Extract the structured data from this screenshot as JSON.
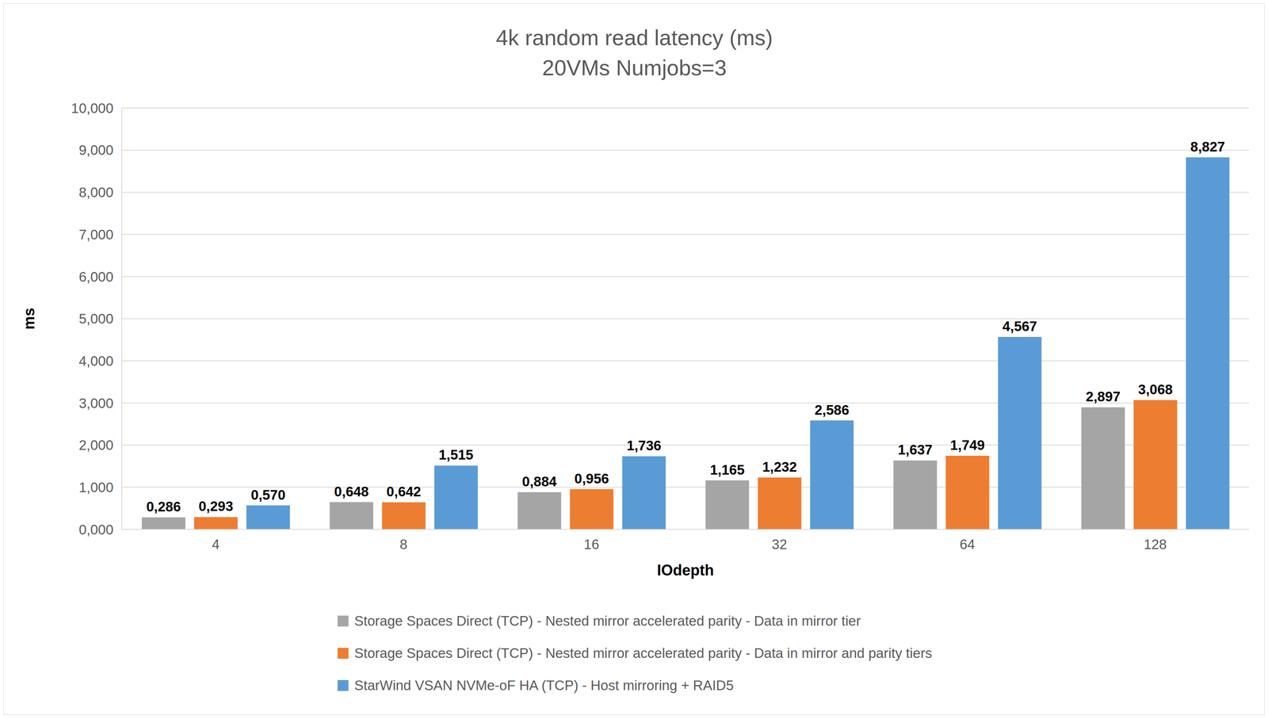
{
  "chart_data": {
    "type": "bar",
    "title": "4k random read latency (ms)",
    "subtitle": "20VMs Numjobs=3",
    "x_label": "IOdepth",
    "y_label": "ms",
    "categories": [
      "4",
      "8",
      "16",
      "32",
      "64",
      "128"
    ],
    "series": [
      {
        "name": "Storage Spaces Direct (TCP) - Nested mirror accelerated parity - Data in mirror tier",
        "color": "#a5a5a5",
        "values": [
          0.286,
          0.648,
          0.884,
          1.165,
          1.637,
          2.897
        ],
        "value_labels": [
          "0,286",
          "0,648",
          "0,884",
          "1,165",
          "1,637",
          "2,897"
        ]
      },
      {
        "name": "Storage Spaces Direct (TCP) - Nested mirror accelerated parity - Data in mirror and parity tiers",
        "color": "#ed7d31",
        "values": [
          0.293,
          0.642,
          0.956,
          1.232,
          1.749,
          3.068
        ],
        "value_labels": [
          "0,293",
          "0,642",
          "0,956",
          "1,232",
          "1,749",
          "3,068"
        ]
      },
      {
        "name": "StarWind VSAN NVMe-oF HA (TCP) - Host mirroring + RAID5",
        "color": "#5b9bd5",
        "values": [
          0.57,
          1.515,
          1.736,
          2.586,
          4.567,
          8.827
        ],
        "value_labels": [
          "0,570",
          "1,515",
          "1,736",
          "2,586",
          "4,567",
          "8,827"
        ]
      }
    ],
    "ylim": [
      0,
      10
    ],
    "yticks": [
      {
        "value": 0,
        "label": "0,000"
      },
      {
        "value": 1,
        "label": "1,000"
      },
      {
        "value": 2,
        "label": "2,000"
      },
      {
        "value": 3,
        "label": "3,000"
      },
      {
        "value": 4,
        "label": "4,000"
      },
      {
        "value": 5,
        "label": "5,000"
      },
      {
        "value": 6,
        "label": "6,000"
      },
      {
        "value": 7,
        "label": "7,000"
      },
      {
        "value": 8,
        "label": "8,000"
      },
      {
        "value": 9,
        "label": "9,000"
      },
      {
        "value": 10,
        "label": "10,000"
      }
    ],
    "grid": true,
    "data_labels": true,
    "legend": "bottom"
  }
}
